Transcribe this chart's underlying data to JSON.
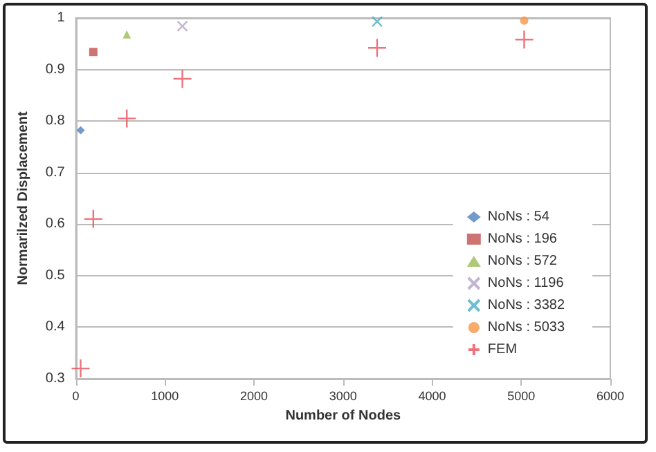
{
  "chart_data": {
    "type": "scatter",
    "xlabel": "Number of Nodes",
    "ylabel": "Normarilzed Displacement",
    "xlim": [
      0,
      6000
    ],
    "xticks": [
      0,
      1000,
      2000,
      3000,
      4000,
      5000,
      6000
    ],
    "ylim": [
      0.3,
      1
    ],
    "yticks": [
      0.3,
      0.4,
      0.5,
      0.6,
      0.7,
      0.8,
      0.9,
      1
    ],
    "grid": "y",
    "legend": "bottom right",
    "series": [
      {
        "name": "NoNs : 54",
        "color": "#4f81bd",
        "marker": "diamond",
        "x": [
          54
        ],
        "values": [
          0.782
        ]
      },
      {
        "name": "NoNs : 196",
        "color": "#c0504d",
        "marker": "square",
        "x": [
          196
        ],
        "values": [
          0.934
        ]
      },
      {
        "name": "NoNs : 572",
        "color": "#9bbb59",
        "marker": "triangle",
        "x": [
          572
        ],
        "values": [
          0.968
        ]
      },
      {
        "name": "NoNs : 1196",
        "color": "#b3a2c7",
        "marker": "x",
        "x": [
          1196
        ],
        "values": [
          0.984
        ]
      },
      {
        "name": "NoNs : 3382",
        "color": "#4bacc6",
        "marker": "x",
        "x": [
          3382
        ],
        "values": [
          0.993
        ]
      },
      {
        "name": "NoNs : 5033",
        "color": "#f79646",
        "marker": "circle",
        "x": [
          5033
        ],
        "values": [
          0.995
        ]
      },
      {
        "name": "FEM",
        "color": "#e8505b",
        "marker": "cross",
        "x": [
          54,
          196,
          572,
          1196,
          3382,
          5033
        ],
        "values": [
          0.32,
          0.61,
          0.805,
          0.882,
          0.942,
          0.958
        ]
      }
    ]
  }
}
